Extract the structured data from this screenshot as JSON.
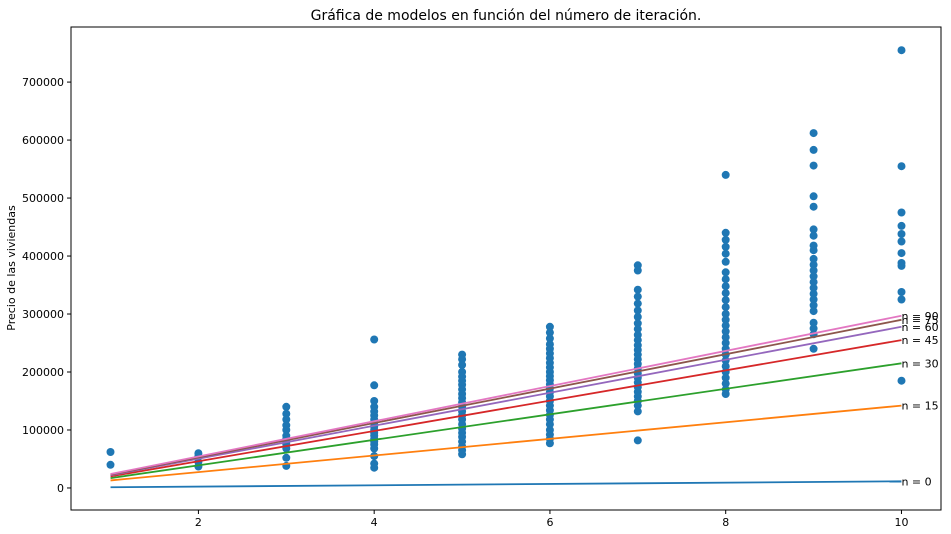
{
  "chart_data": {
    "type": "scatter",
    "title": "Gráfica de modelos en función del número de iteración.",
    "xlabel": "",
    "ylabel": "Precio de las viviendas",
    "xlim": [
      0.55,
      10.45
    ],
    "ylim": [
      -38000,
      795000
    ],
    "xticks": [
      2,
      4,
      6,
      8,
      10
    ],
    "yticks": [
      0,
      100000,
      200000,
      300000,
      400000,
      500000,
      600000,
      700000
    ],
    "point_color": "#1f77b4",
    "points": [
      [
        1,
        62000
      ],
      [
        1,
        40000
      ],
      [
        2,
        60000
      ],
      [
        2,
        55000
      ],
      [
        2,
        45000
      ],
      [
        2,
        37000
      ],
      [
        3,
        140000
      ],
      [
        3,
        128000
      ],
      [
        3,
        118000
      ],
      [
        3,
        108000
      ],
      [
        3,
        100000
      ],
      [
        3,
        90000
      ],
      [
        3,
        85000
      ],
      [
        3,
        80000
      ],
      [
        3,
        75000
      ],
      [
        3,
        68000
      ],
      [
        3,
        52000
      ],
      [
        3,
        38000
      ],
      [
        4,
        256000
      ],
      [
        4,
        177000
      ],
      [
        4,
        150000
      ],
      [
        4,
        140000
      ],
      [
        4,
        132000
      ],
      [
        4,
        125000
      ],
      [
        4,
        118000
      ],
      [
        4,
        112000
      ],
      [
        4,
        106000
      ],
      [
        4,
        100000
      ],
      [
        4,
        95000
      ],
      [
        4,
        90000
      ],
      [
        4,
        85000
      ],
      [
        4,
        80000
      ],
      [
        4,
        75000
      ],
      [
        4,
        68000
      ],
      [
        4,
        55000
      ],
      [
        4,
        42000
      ],
      [
        4,
        35000
      ],
      [
        5,
        230000
      ],
      [
        5,
        222000
      ],
      [
        5,
        212000
      ],
      [
        5,
        200000
      ],
      [
        5,
        192000
      ],
      [
        5,
        185000
      ],
      [
        5,
        178000
      ],
      [
        5,
        170000
      ],
      [
        5,
        162000
      ],
      [
        5,
        155000
      ],
      [
        5,
        148000
      ],
      [
        5,
        140000
      ],
      [
        5,
        132000
      ],
      [
        5,
        125000
      ],
      [
        5,
        118000
      ],
      [
        5,
        110000
      ],
      [
        5,
        102000
      ],
      [
        5,
        95000
      ],
      [
        5,
        88000
      ],
      [
        5,
        80000
      ],
      [
        5,
        72000
      ],
      [
        5,
        65000
      ],
      [
        5,
        58000
      ],
      [
        6,
        278000
      ],
      [
        6,
        268000
      ],
      [
        6,
        258000
      ],
      [
        6,
        248000
      ],
      [
        6,
        240000
      ],
      [
        6,
        232000
      ],
      [
        6,
        224000
      ],
      [
        6,
        216000
      ],
      [
        6,
        208000
      ],
      [
        6,
        200000
      ],
      [
        6,
        193000
      ],
      [
        6,
        186000
      ],
      [
        6,
        179000
      ],
      [
        6,
        172000
      ],
      [
        6,
        165000
      ],
      [
        6,
        158000
      ],
      [
        6,
        150000
      ],
      [
        6,
        142000
      ],
      [
        6,
        134000
      ],
      [
        6,
        126000
      ],
      [
        6,
        118000
      ],
      [
        6,
        110000
      ],
      [
        6,
        100000
      ],
      [
        6,
        92000
      ],
      [
        6,
        85000
      ],
      [
        6,
        77000
      ],
      [
        7,
        384000
      ],
      [
        7,
        375000
      ],
      [
        7,
        342000
      ],
      [
        7,
        330000
      ],
      [
        7,
        318000
      ],
      [
        7,
        306000
      ],
      [
        7,
        295000
      ],
      [
        7,
        284000
      ],
      [
        7,
        274000
      ],
      [
        7,
        264000
      ],
      [
        7,
        255000
      ],
      [
        7,
        246000
      ],
      [
        7,
        238000
      ],
      [
        7,
        230000
      ],
      [
        7,
        222000
      ],
      [
        7,
        214000
      ],
      [
        7,
        206000
      ],
      [
        7,
        198000
      ],
      [
        7,
        190000
      ],
      [
        7,
        182000
      ],
      [
        7,
        174000
      ],
      [
        7,
        166000
      ],
      [
        7,
        158000
      ],
      [
        7,
        150000
      ],
      [
        7,
        142000
      ],
      [
        7,
        132000
      ],
      [
        7,
        82000
      ],
      [
        8,
        540000
      ],
      [
        8,
        440000
      ],
      [
        8,
        428000
      ],
      [
        8,
        416000
      ],
      [
        8,
        404000
      ],
      [
        8,
        390000
      ],
      [
        8,
        372000
      ],
      [
        8,
        360000
      ],
      [
        8,
        348000
      ],
      [
        8,
        336000
      ],
      [
        8,
        324000
      ],
      [
        8,
        312000
      ],
      [
        8,
        300000
      ],
      [
        8,
        290000
      ],
      [
        8,
        280000
      ],
      [
        8,
        270000
      ],
      [
        8,
        260000
      ],
      [
        8,
        250000
      ],
      [
        8,
        240000
      ],
      [
        8,
        230000
      ],
      [
        8,
        220000
      ],
      [
        8,
        210000
      ],
      [
        8,
        200000
      ],
      [
        8,
        190000
      ],
      [
        8,
        180000
      ],
      [
        8,
        170000
      ],
      [
        8,
        162000
      ],
      [
        9,
        612000
      ],
      [
        9,
        583000
      ],
      [
        9,
        556000
      ],
      [
        9,
        503000
      ],
      [
        9,
        485000
      ],
      [
        9,
        446000
      ],
      [
        9,
        435000
      ],
      [
        9,
        418000
      ],
      [
        9,
        410000
      ],
      [
        9,
        395000
      ],
      [
        9,
        385000
      ],
      [
        9,
        375000
      ],
      [
        9,
        365000
      ],
      [
        9,
        355000
      ],
      [
        9,
        345000
      ],
      [
        9,
        335000
      ],
      [
        9,
        325000
      ],
      [
        9,
        315000
      ],
      [
        9,
        305000
      ],
      [
        9,
        285000
      ],
      [
        9,
        275000
      ],
      [
        9,
        265000
      ],
      [
        9,
        240000
      ],
      [
        10,
        755000
      ],
      [
        10,
        555000
      ],
      [
        10,
        475000
      ],
      [
        10,
        452000
      ],
      [
        10,
        438000
      ],
      [
        10,
        425000
      ],
      [
        10,
        405000
      ],
      [
        10,
        388000
      ],
      [
        10,
        383000
      ],
      [
        10,
        338000
      ],
      [
        10,
        325000
      ],
      [
        10,
        185000
      ]
    ],
    "series": [
      {
        "name": "n = 0",
        "color": "#1f77b4",
        "y_at_1": 1200,
        "y_at_10": 11500
      },
      {
        "name": "n = 15",
        "color": "#ff7f0e",
        "y_at_1": 13000,
        "y_at_10": 142000
      },
      {
        "name": "n = 30",
        "color": "#2ca02c",
        "y_at_1": 17000,
        "y_at_10": 215000
      },
      {
        "name": "n = 45",
        "color": "#d62728",
        "y_at_1": 20000,
        "y_at_10": 255000
      },
      {
        "name": "n = 60",
        "color": "#9467bd",
        "y_at_1": 22000,
        "y_at_10": 278000
      },
      {
        "name": "n = 75",
        "color": "#8c564b",
        "y_at_1": 23000,
        "y_at_10": 290000
      },
      {
        "name": "n = 90",
        "color": "#e377c2",
        "y_at_1": 24000,
        "y_at_10": 297000
      }
    ],
    "grid": false
  }
}
